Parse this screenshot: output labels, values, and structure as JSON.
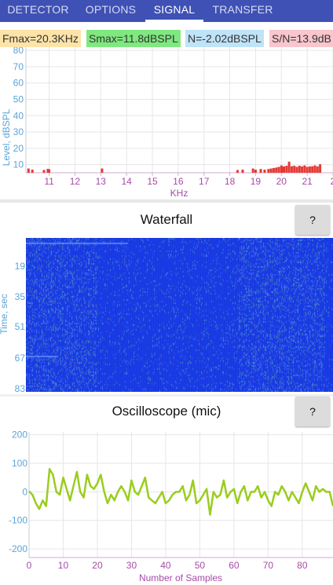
{
  "tabs": [
    {
      "label": "DETECTOR",
      "active": false
    },
    {
      "label": "OPTIONS",
      "active": false
    },
    {
      "label": "SIGNAL",
      "active": true
    },
    {
      "label": "TRANSFER",
      "active": false
    }
  ],
  "stats": {
    "fmax": "Fmax=20.3KHz",
    "smax": "Smax=11.8dBSPL",
    "noise": "N=-2.02dBSPL",
    "snr": "S/N=13.9dB"
  },
  "colors": {
    "tab_bar": "#3f51b5",
    "fmax_bg": "#fde3a7",
    "smax_bg": "#7fe87f",
    "noise_bg": "#bfe3f7",
    "snr_bg": "#f8c6cc",
    "spectrum_bars": "#e53935",
    "axis_labels": "#a64ca6",
    "y_labels": "#5aa5d8",
    "waterfall_bg": "#1a3de8",
    "oscilloscope_line": "#9acd1e"
  },
  "waterfall": {
    "title": "Waterfall",
    "help_label": "?",
    "ylabel": "Time, sec",
    "y_ticks": [
      "19",
      "35",
      "51",
      "67",
      "83"
    ]
  },
  "oscilloscope": {
    "title": "Oscilloscope (mic)",
    "help_label": "?"
  },
  "chart_data": [
    {
      "type": "bar",
      "xlabel": "KHz",
      "ylabel": "Level, dBSPL",
      "xlim": [
        10.1,
        22
      ],
      "ylim": [
        5,
        82
      ],
      "x_ticks": [
        "11",
        "12",
        "13",
        "14",
        "15",
        "16",
        "17",
        "18",
        "19",
        "20",
        "21",
        "2"
      ],
      "y_ticks": [
        "10",
        "20",
        "30",
        "40",
        "50",
        "60",
        "70",
        "80"
      ],
      "grid": true,
      "x": [
        10.2,
        10.35,
        10.8,
        10.95,
        11.0,
        13.05,
        18.3,
        18.5,
        18.9,
        19.0,
        19.2,
        19.35,
        19.5,
        19.6,
        19.7,
        19.8,
        19.9,
        20.0,
        20.05,
        20.1,
        20.2,
        20.3,
        20.4,
        20.5,
        20.6,
        20.7,
        20.8,
        20.9,
        21.0,
        21.1,
        21.2,
        21.3,
        21.4,
        21.5
      ],
      "values": [
        7.6,
        6.9,
        6.7,
        7.4,
        7.1,
        7.6,
        6.7,
        6.9,
        7.6,
        6.9,
        7.3,
        6.9,
        7.3,
        7.6,
        7.9,
        8.2,
        8.6,
        9.5,
        8.6,
        8.9,
        9.3,
        11.8,
        9.0,
        9.3,
        8.6,
        9.3,
        8.9,
        9.5,
        8.6,
        8.9,
        9.0,
        9.5,
        8.9,
        10.2
      ]
    },
    {
      "type": "line",
      "xlabel": "Number of Samples",
      "ylim": [
        -230,
        210
      ],
      "xlim": [
        0,
        89
      ],
      "x_ticks": [
        "0",
        "10",
        "20",
        "30",
        "40",
        "50",
        "60",
        "70",
        "80"
      ],
      "y_ticks": [
        "200",
        "100",
        "0",
        "-100",
        "-200"
      ],
      "grid": true,
      "series": [
        {
          "values": [
            2,
            -10,
            -40,
            -60,
            -30,
            -50,
            80,
            60,
            0,
            -10,
            50,
            10,
            -30,
            20,
            70,
            0,
            -20,
            60,
            20,
            10,
            30,
            60,
            0,
            -40,
            -10,
            -30,
            0,
            20,
            0,
            -30,
            40,
            0,
            -10,
            20,
            50,
            -20,
            -30,
            -40,
            -20,
            0,
            -40,
            -30,
            -10,
            0,
            0,
            20,
            -30,
            -10,
            40,
            -40,
            -30,
            -10,
            10,
            -80,
            0,
            -20,
            -10,
            40,
            -20,
            0,
            10,
            -40,
            0,
            20,
            -30,
            0,
            0,
            20,
            -20,
            0,
            -30,
            -50,
            0,
            -10,
            20,
            0,
            -30,
            0,
            -20,
            -40,
            0,
            30,
            0,
            -30,
            20,
            0,
            10,
            0,
            0,
            -50
          ]
        }
      ]
    }
  ]
}
